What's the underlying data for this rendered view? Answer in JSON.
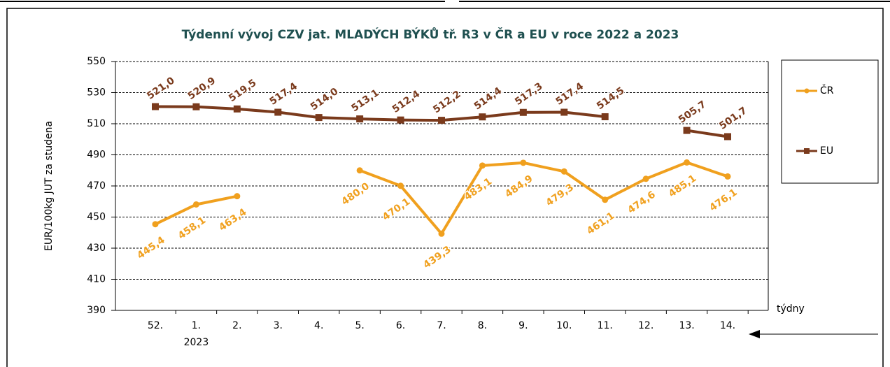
{
  "chart_data": {
    "type": "line",
    "title": "Týdenní  vývoj CZV jat. MLADÝCH BÝKŮ tř. R3  v ČR a EU v roce 2022 a 2023",
    "y_label": "EUR/100kg  JUT za studena",
    "x_label": "týdny",
    "year_annotation": "2023",
    "categories": [
      "52.",
      "1.",
      "2.",
      "3.",
      "4.",
      "5.",
      "6.",
      "7.",
      "8.",
      "9.",
      "10.",
      "11.",
      "12.",
      "13.",
      "14."
    ],
    "series": [
      {
        "name": "ČR",
        "color": "#f0a01e",
        "values": [
          445.4,
          458.1,
          463.4,
          null,
          null,
          480.0,
          470.1,
          439.3,
          483.1,
          484.9,
          479.3,
          461.1,
          474.6,
          485.1,
          476.1
        ],
        "value_labels": [
          "445,4",
          "458,1",
          "463,4",
          null,
          null,
          "480,0",
          "470,1",
          "439,3",
          "483,1",
          "484,9",
          "479,3",
          "461,1",
          "474,6",
          "485,1",
          "476,1"
        ]
      },
      {
        "name": "EU",
        "color": "#7a3a1c",
        "values": [
          521.0,
          520.9,
          519.5,
          517.4,
          514.0,
          513.1,
          512.4,
          512.2,
          514.4,
          517.3,
          517.4,
          514.5,
          null,
          505.7,
          501.7
        ],
        "value_labels": [
          "521,0",
          "520,9",
          "519,5",
          "517,4",
          "514,0",
          "513,1",
          "512,4",
          "512,2",
          "514,4",
          "517,3",
          "517,4",
          "514,5",
          null,
          "505,7",
          "501,7"
        ]
      }
    ],
    "ylim": [
      390,
      550
    ],
    "yticks": [
      390,
      410,
      430,
      450,
      470,
      490,
      510,
      530,
      550
    ],
    "grid": true,
    "legend": "right"
  }
}
